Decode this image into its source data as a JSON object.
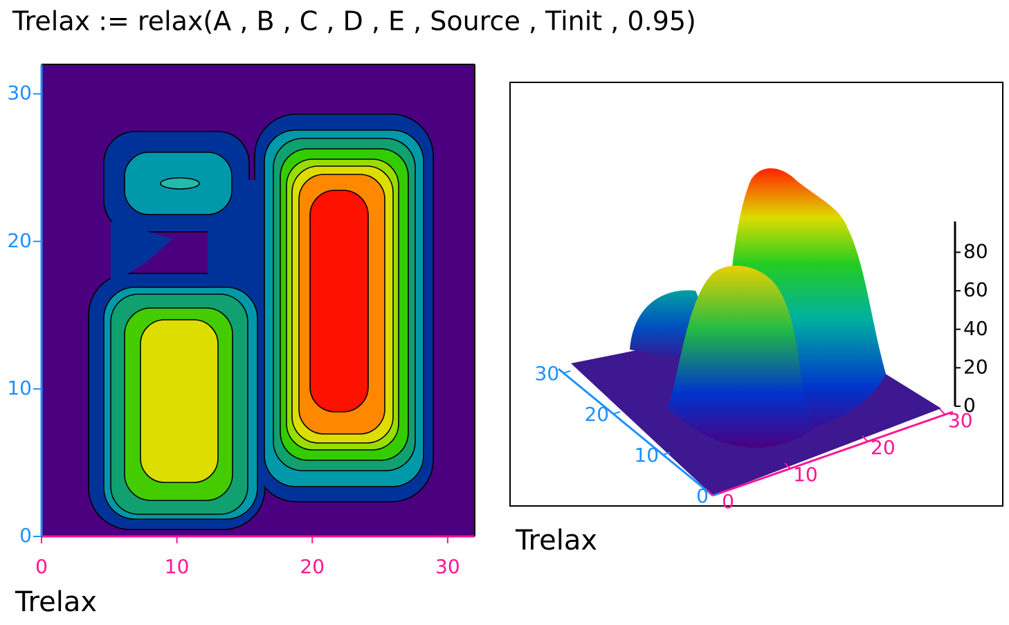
{
  "formula": "Trelax := relax(A , B , C , D , E , Source , Tinit , 0.95)",
  "chart_data": [
    {
      "type": "contour",
      "xlabel": "Trelax",
      "xlim": [
        0,
        32
      ],
      "ylim": [
        0,
        32
      ],
      "xticks": [
        0,
        10,
        20,
        30
      ],
      "yticks": [
        0,
        10,
        20,
        30
      ],
      "xaxis_color": "#ff1493",
      "yaxis_color": "#1e90ff"
    },
    {
      "type": "surface",
      "xlabel": "Trelax",
      "xlim": [
        0,
        31
      ],
      "ylim": [
        0,
        31
      ],
      "zlim": [
        0,
        96
      ],
      "xticks": [
        0,
        10,
        20,
        30
      ],
      "yticks": [
        0,
        10,
        20,
        30
      ],
      "zticks": [
        0,
        20,
        40,
        60,
        80
      ],
      "xaxis_color": "#ff1493",
      "yaxis_color": "#1e90ff",
      "zaxis_color": "#000000"
    }
  ]
}
